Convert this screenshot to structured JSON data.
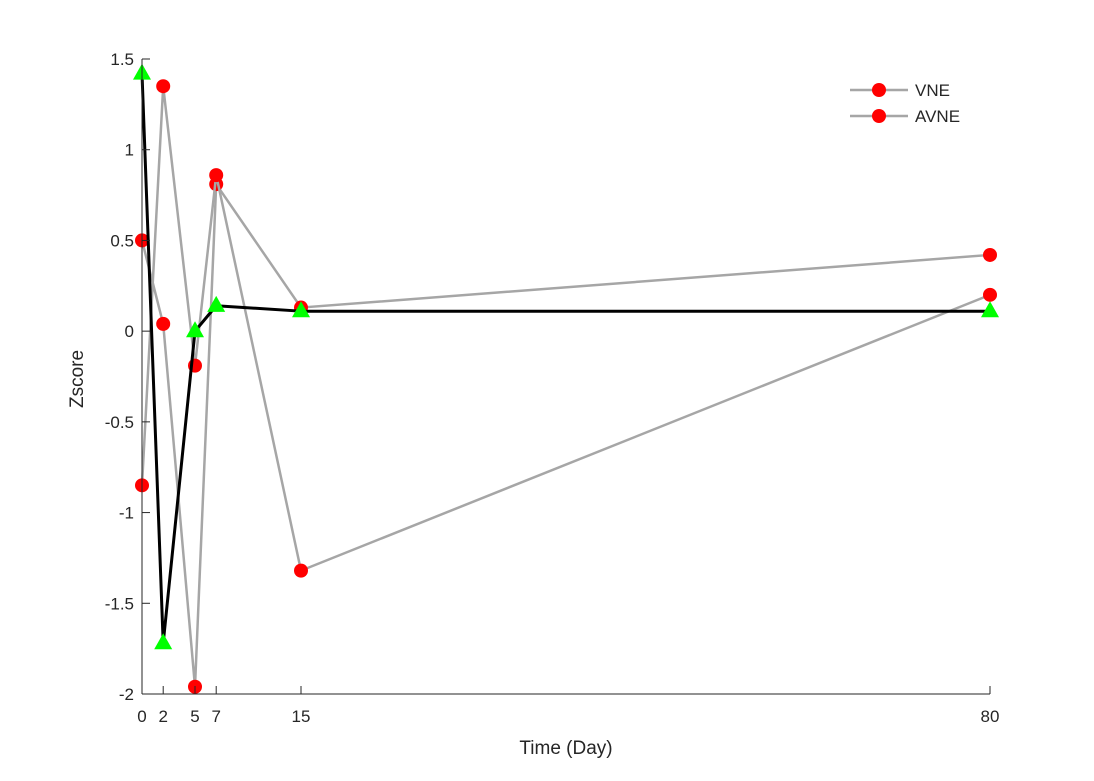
{
  "chart_data": {
    "type": "line",
    "title": "",
    "xlabel": "Time (Day)",
    "ylabel": "Zscore",
    "xlim": [
      0,
      80
    ],
    "ylim": [
      -2,
      1.5
    ],
    "x_ticks": [
      0,
      2,
      5,
      7,
      15,
      80
    ],
    "x_tick_labels": [
      "0",
      "2",
      "5",
      "7",
      "15",
      "80"
    ],
    "y_ticks": [
      1.5,
      1,
      0.5,
      0,
      -0.5,
      -1,
      -1.5,
      -2
    ],
    "y_tick_labels": [
      "1.5",
      "1",
      "0.5",
      "0",
      "-0.5",
      "-1",
      "-1.5",
      "-2"
    ],
    "grid": false,
    "legend_position": "top-right",
    "colors": {
      "gray_line": "#a6a6a6",
      "red_marker": "#ff0000",
      "mean_line": "#000000",
      "mean_marker": "#00ff00"
    },
    "x": [
      0,
      2,
      5,
      7,
      15,
      80
    ],
    "series": [
      {
        "name": "VNE",
        "values": [
          0.5,
          0.04,
          -1.96,
          0.81,
          0.13,
          0.42
        ],
        "line_color": "#a6a6a6",
        "marker": "circle",
        "marker_color": "#ff0000",
        "show_in_legend": true
      },
      {
        "name": "AVNE",
        "values": [
          -0.85,
          1.35,
          -0.19,
          0.86,
          -1.32,
          0.2
        ],
        "line_color": "#a6a6a6",
        "marker": "circle",
        "marker_color": "#ff0000",
        "show_in_legend": true
      },
      {
        "values": [
          1.42,
          -1.72,
          0.0,
          0.14,
          0.11,
          0.11
        ],
        "line_color": "#000000",
        "marker": "triangle",
        "marker_color": "#00ff00",
        "show_in_legend": false
      }
    ]
  }
}
